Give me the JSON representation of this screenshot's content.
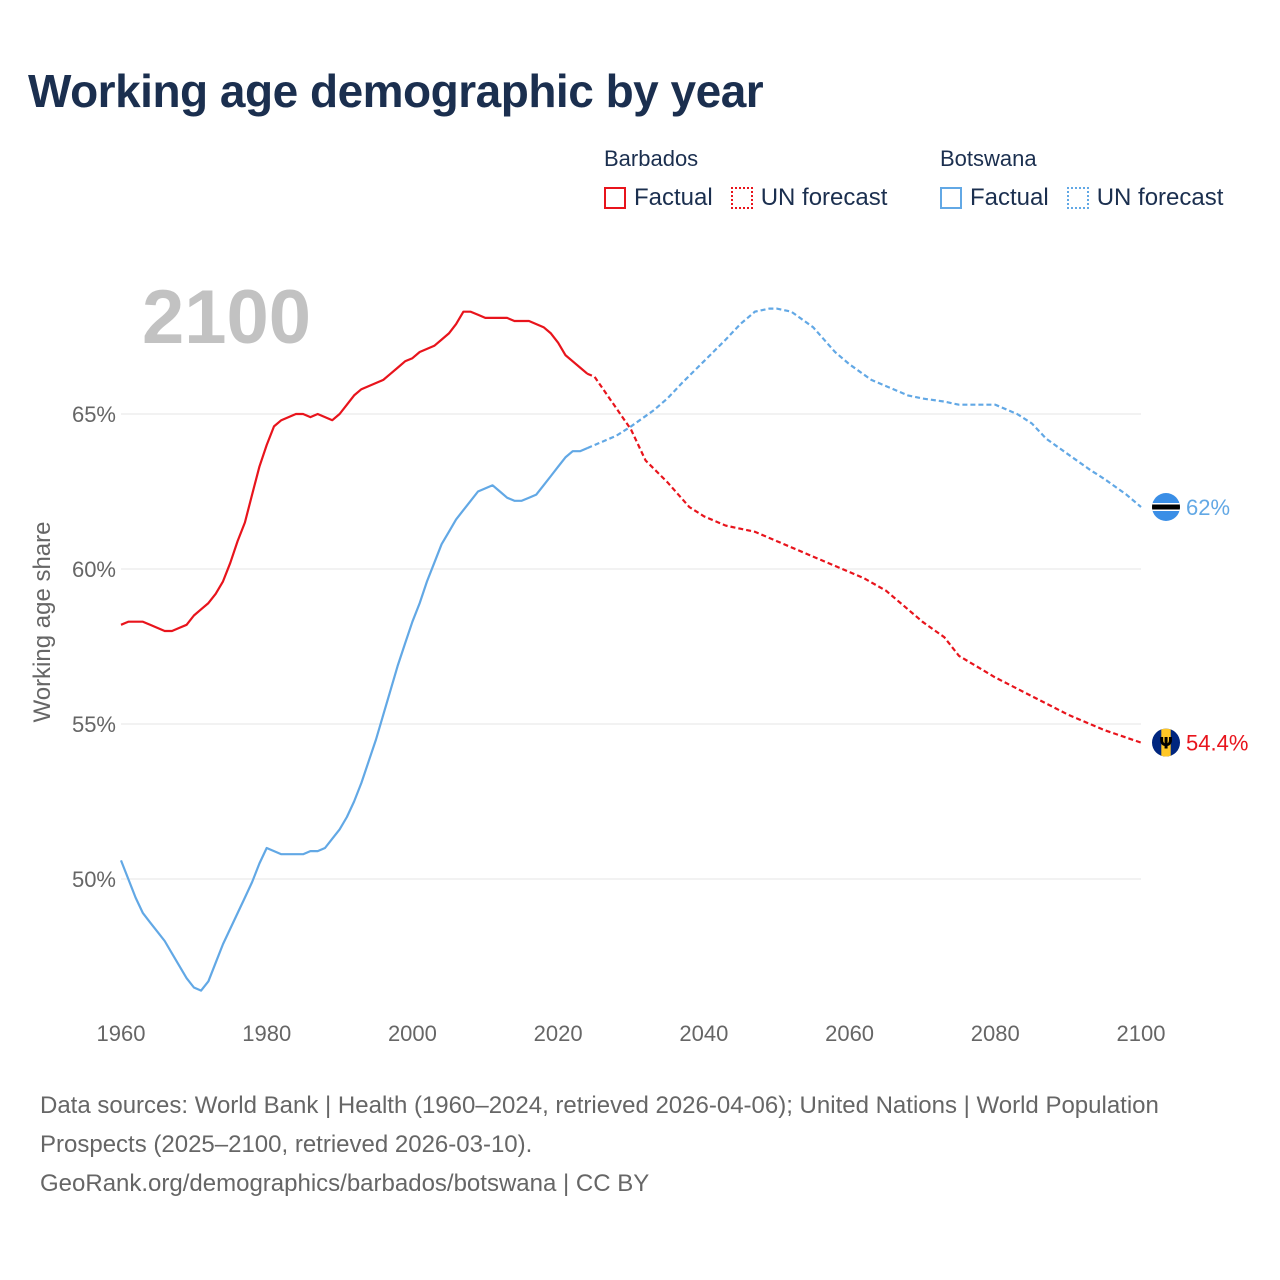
{
  "title": "Working age demographic by year",
  "year_watermark": "2100",
  "legend": {
    "groups": [
      {
        "country": "Barbados",
        "color": "#e8141c",
        "entries": [
          {
            "label": "Factual",
            "style": "solid"
          },
          {
            "label": "UN forecast",
            "style": "dotted"
          }
        ]
      },
      {
        "country": "Botswana",
        "color": "#62a8e5",
        "entries": [
          {
            "label": "Factual",
            "style": "solid"
          },
          {
            "label": "UN forecast",
            "style": "dotted"
          }
        ]
      }
    ]
  },
  "chart_data": {
    "type": "line",
    "title": "Working age demographic by year",
    "xlabel": "",
    "ylabel": "Working age share",
    "xlim": [
      1960,
      2100
    ],
    "ylim": [
      46,
      70
    ],
    "x_ticks": [
      1960,
      1980,
      2000,
      2020,
      2040,
      2060,
      2080,
      2100
    ],
    "x_tick_labels": [
      "1960",
      "1980",
      "2000",
      "2020",
      "2040",
      "2060",
      "2080",
      "2100"
    ],
    "y_ticks": [
      50,
      55,
      60,
      65
    ],
    "y_tick_labels": [
      "50%",
      "55%",
      "60%",
      "65%"
    ],
    "grid": true,
    "series": [
      {
        "name": "Barbados",
        "color": "#e8141c",
        "flag": "barbados",
        "end_label": "54.4%",
        "factual": {
          "x": [
            1960,
            1961,
            1962,
            1963,
            1964,
            1965,
            1966,
            1967,
            1968,
            1969,
            1970,
            1971,
            1972,
            1973,
            1974,
            1975,
            1976,
            1977,
            1978,
            1979,
            1980,
            1981,
            1982,
            1983,
            1984,
            1985,
            1986,
            1987,
            1988,
            1989,
            1990,
            1991,
            1992,
            1993,
            1994,
            1995,
            1996,
            1997,
            1998,
            1999,
            2000,
            2001,
            2002,
            2003,
            2004,
            2005,
            2006,
            2007,
            2008,
            2009,
            2010,
            2011,
            2012,
            2013,
            2014,
            2015,
            2016,
            2017,
            2018,
            2019,
            2020,
            2021,
            2022,
            2023,
            2024
          ],
          "y": [
            58.2,
            58.3,
            58.3,
            58.3,
            58.2,
            58.1,
            58.0,
            58.0,
            58.1,
            58.2,
            58.5,
            58.7,
            58.9,
            59.2,
            59.6,
            60.2,
            60.9,
            61.5,
            62.4,
            63.3,
            64.0,
            64.6,
            64.8,
            64.9,
            65.0,
            65.0,
            64.9,
            65.0,
            64.9,
            64.8,
            65.0,
            65.3,
            65.6,
            65.8,
            65.9,
            66.0,
            66.1,
            66.3,
            66.5,
            66.7,
            66.8,
            67.0,
            67.1,
            67.2,
            67.4,
            67.6,
            67.9,
            68.3,
            68.3,
            68.2,
            68.1,
            68.1,
            68.1,
            68.1,
            68.0,
            68.0,
            68.0,
            67.9,
            67.8,
            67.6,
            67.3,
            66.9,
            66.7,
            66.5,
            66.3
          ]
        },
        "forecast": {
          "x": [
            2024,
            2025,
            2030,
            2032,
            2035,
            2038,
            2040,
            2043,
            2045,
            2047,
            2050,
            2053,
            2055,
            2058,
            2060,
            2062,
            2065,
            2068,
            2070,
            2073,
            2075,
            2080,
            2085,
            2090,
            2095,
            2100
          ],
          "y": [
            66.3,
            66.2,
            64.5,
            63.5,
            62.8,
            62.0,
            61.7,
            61.4,
            61.3,
            61.2,
            60.9,
            60.6,
            60.4,
            60.1,
            59.9,
            59.7,
            59.3,
            58.7,
            58.3,
            57.8,
            57.2,
            56.5,
            55.9,
            55.3,
            54.8,
            54.4
          ]
        }
      },
      {
        "name": "Botswana",
        "color": "#62a8e5",
        "flag": "botswana",
        "end_label": "62%",
        "factual": {
          "x": [
            1960,
            1961,
            1962,
            1963,
            1964,
            1965,
            1966,
            1967,
            1968,
            1969,
            1970,
            1971,
            1972,
            1973,
            1974,
            1975,
            1976,
            1977,
            1978,
            1979,
            1980,
            1981,
            1982,
            1983,
            1984,
            1985,
            1986,
            1987,
            1988,
            1989,
            1990,
            1991,
            1992,
            1993,
            1994,
            1995,
            1996,
            1997,
            1998,
            1999,
            2000,
            2001,
            2002,
            2003,
            2004,
            2005,
            2006,
            2007,
            2008,
            2009,
            2010,
            2011,
            2012,
            2013,
            2014,
            2015,
            2016,
            2017,
            2018,
            2019,
            2020,
            2021,
            2022,
            2023,
            2024
          ],
          "y": [
            50.6,
            50.0,
            49.4,
            48.9,
            48.6,
            48.3,
            48.0,
            47.6,
            47.2,
            46.8,
            46.5,
            46.4,
            46.7,
            47.3,
            47.9,
            48.4,
            48.9,
            49.4,
            49.9,
            50.5,
            51.0,
            50.9,
            50.8,
            50.8,
            50.8,
            50.8,
            50.9,
            50.9,
            51.0,
            51.3,
            51.6,
            52.0,
            52.5,
            53.1,
            53.8,
            54.5,
            55.3,
            56.1,
            56.9,
            57.6,
            58.3,
            58.9,
            59.6,
            60.2,
            60.8,
            61.2,
            61.6,
            61.9,
            62.2,
            62.5,
            62.6,
            62.7,
            62.5,
            62.3,
            62.2,
            62.2,
            62.3,
            62.4,
            62.7,
            63.0,
            63.3,
            63.6,
            63.8,
            63.8,
            63.9
          ]
        },
        "forecast": {
          "x": [
            2024,
            2025,
            2028,
            2030,
            2033,
            2035,
            2037,
            2040,
            2043,
            2045,
            2047,
            2049,
            2050,
            2052,
            2055,
            2058,
            2060,
            2063,
            2065,
            2068,
            2070,
            2073,
            2075,
            2080,
            2083,
            2085,
            2087,
            2090,
            2093,
            2095,
            2098,
            2100
          ],
          "y": [
            63.9,
            64.0,
            64.3,
            64.6,
            65.1,
            65.5,
            66.0,
            66.7,
            67.4,
            67.9,
            68.3,
            68.4,
            68.4,
            68.3,
            67.8,
            67.0,
            66.6,
            66.1,
            65.9,
            65.6,
            65.5,
            65.4,
            65.3,
            65.3,
            65.0,
            64.7,
            64.2,
            63.7,
            63.2,
            62.9,
            62.4,
            62.0
          ]
        }
      }
    ]
  },
  "footer": {
    "sources": "Data sources: World Bank | Health (1960–2024, retrieved 2026-04-06); United Nations | World Population Prospects (2025–2100, retrieved 2026-03-10).",
    "attribution": "GeoRank.org/demographics/barbados/botswana | CC BY"
  }
}
